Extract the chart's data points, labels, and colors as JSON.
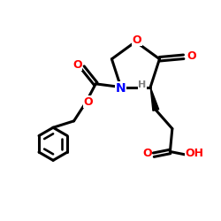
{
  "bg_color": "#ffffff",
  "atom_colors": {
    "O": "#ff0000",
    "N": "#0000ff",
    "C": "#000000",
    "H": "#808080"
  },
  "bond_width": 2.2,
  "fig_size": [
    2.5,
    2.5
  ],
  "dpi": 100
}
